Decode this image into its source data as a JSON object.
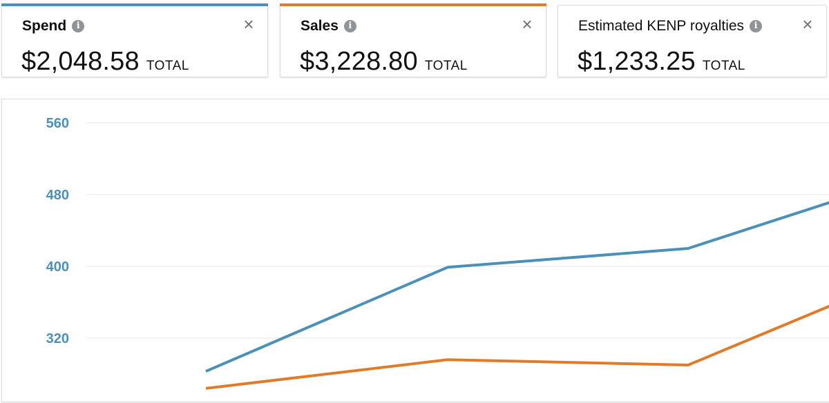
{
  "metrics": [
    {
      "label": "Spend",
      "value": "$2,048.58",
      "unit": "TOTAL",
      "color": "#4a90b8",
      "info_icon": "info-icon",
      "close_icon": "close-icon"
    },
    {
      "label": "Sales",
      "value": "$3,228.80",
      "unit": "TOTAL",
      "color": "#e07b2a",
      "info_icon": "info-icon",
      "close_icon": "close-icon"
    },
    {
      "label": "Estimated KENP royalties",
      "value": "$1,233.25",
      "unit": "TOTAL",
      "color": "",
      "info_icon": "info-icon",
      "close_icon": "close-icon"
    }
  ],
  "chart_data": {
    "type": "line",
    "y_ticks": [
      560,
      480,
      400,
      320
    ],
    "y_tick_color": "#4a90b8",
    "gridlines": true,
    "ylim": [
      240,
      580
    ],
    "x": [
      1,
      2,
      3,
      4
    ],
    "series": [
      {
        "color": "#4a90b8",
        "values": [
          283,
          399,
          420,
          473
        ]
      },
      {
        "color": "#e07b2a",
        "values": [
          264,
          296,
          290,
          358
        ]
      }
    ]
  }
}
